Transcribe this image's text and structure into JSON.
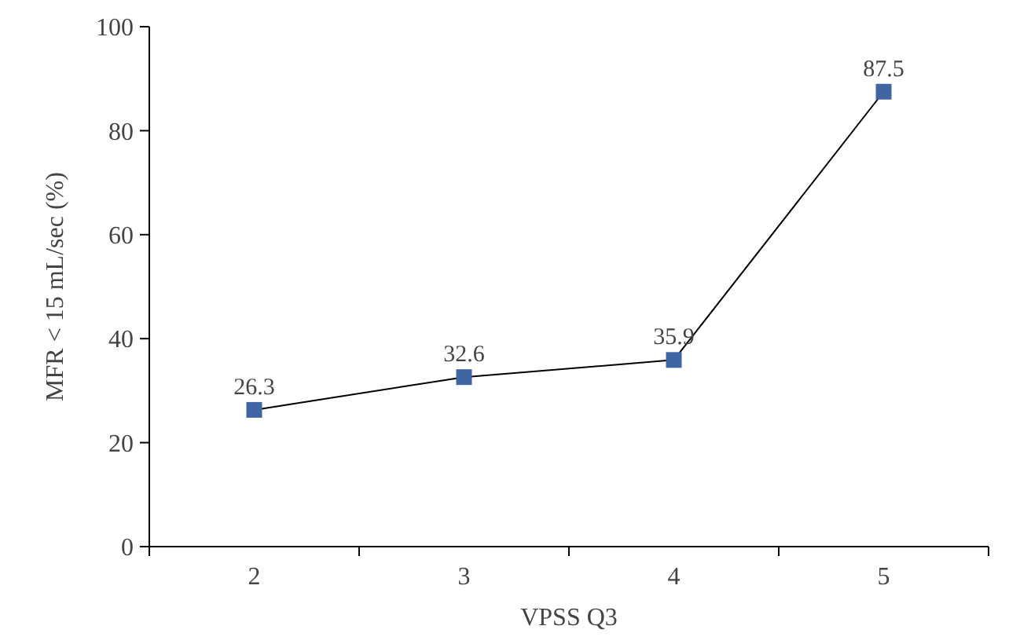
{
  "chart_data": {
    "type": "line",
    "xlabel": "VPSS Q3",
    "ylabel": "MFR < 15 mL/sec (%)",
    "categories": [
      "2",
      "3",
      "4",
      "5"
    ],
    "series": [
      {
        "color": "#3f65a3",
        "values": [
          26.3,
          32.6,
          35.9,
          87.5
        ]
      }
    ],
    "ylim": [
      0,
      100
    ],
    "yticks": [
      0,
      20,
      40,
      60,
      80,
      100
    ],
    "data_labels": true,
    "marker": "square",
    "line_style": "solid"
  }
}
